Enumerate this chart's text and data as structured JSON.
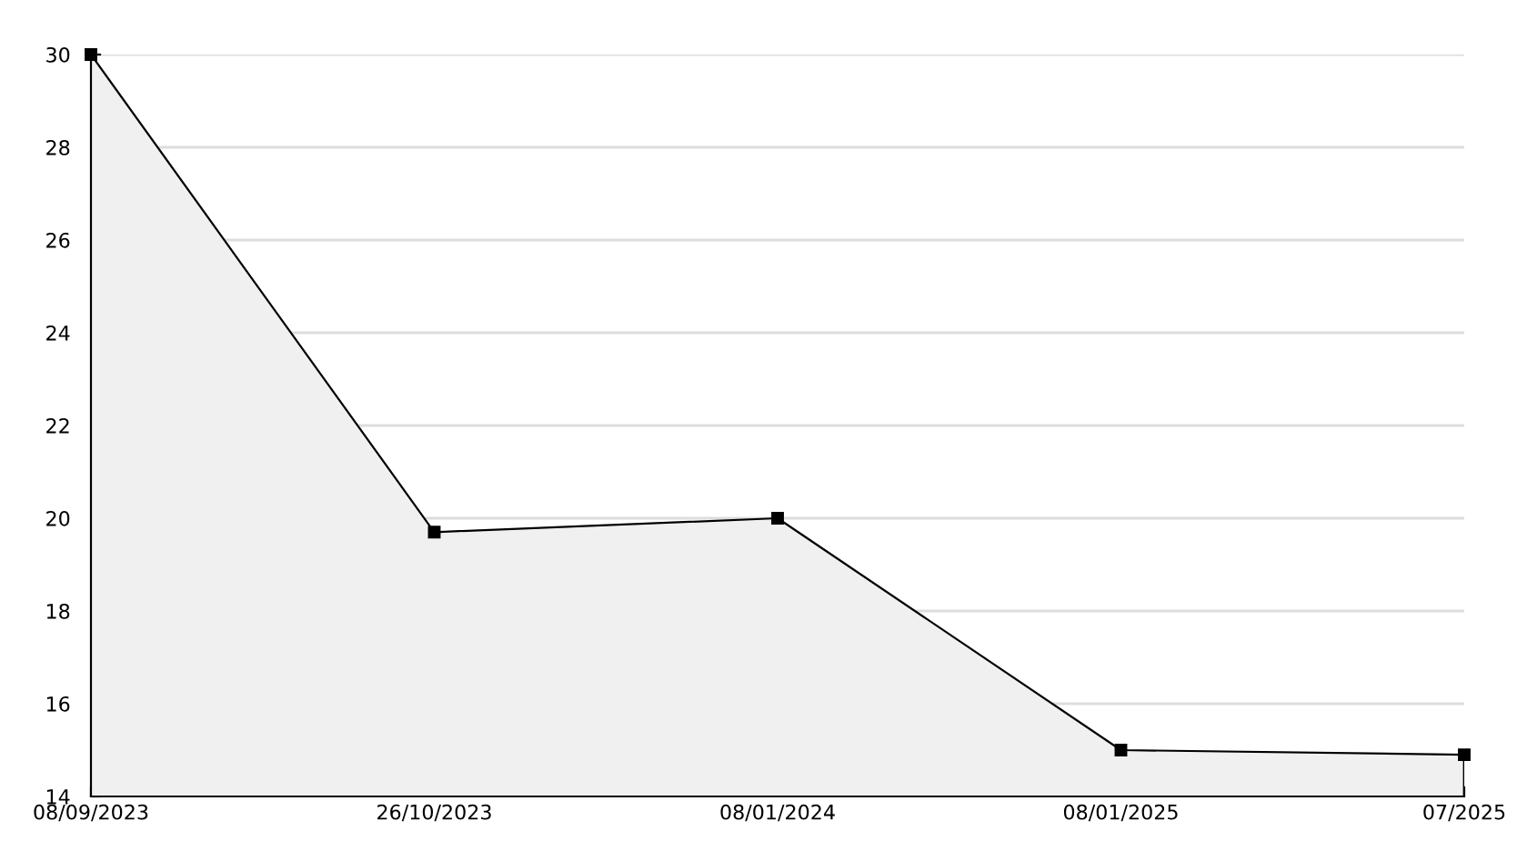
{
  "chart_data": {
    "type": "area",
    "categories": [
      "08/09/2023",
      "26/10/2023",
      "08/01/2024",
      "08/01/2025",
      "07/2025"
    ],
    "series": [
      {
        "color": "#000000",
        "values": [
          30,
          19.7,
          20,
          15,
          14.9
        ]
      }
    ],
    "ylim": [
      14,
      30
    ],
    "yticks": [
      14,
      16,
      18,
      20,
      22,
      24,
      26,
      28,
      30
    ],
    "grid": "y",
    "marker": "square",
    "line_style": "solid",
    "legend": false
  }
}
